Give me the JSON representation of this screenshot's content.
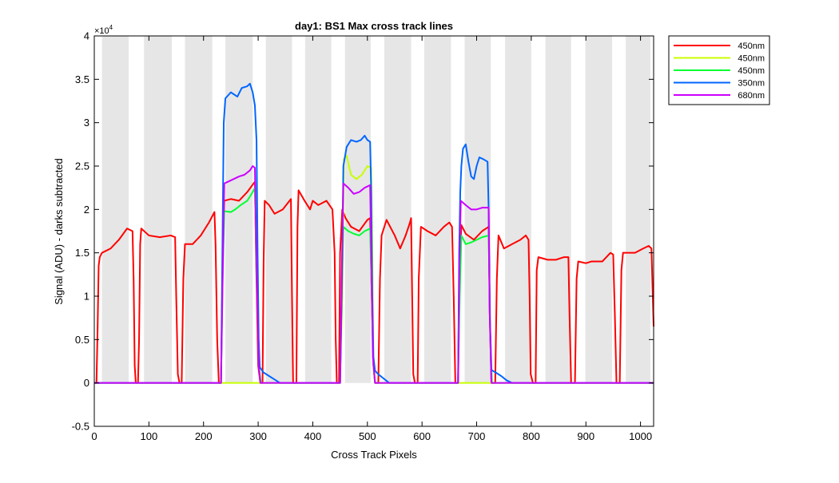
{
  "chart_data": {
    "type": "line",
    "title": "day1: BS1  Max cross track lines",
    "xlabel": "Cross Track Pixels",
    "ylabel": "Signal (ADU) - darks subtracted",
    "y_exponent_label": "×10",
    "y_exponent_power": "4",
    "xlim": [
      0,
      1024
    ],
    "ylim": [
      -0.5,
      4
    ],
    "y_scale_note": "y values in units of 1e4 ADU",
    "x_ticks": [
      0,
      100,
      200,
      300,
      400,
      500,
      600,
      700,
      800,
      900,
      1000
    ],
    "y_ticks": [
      -0.5,
      0,
      0.5,
      1,
      1.5,
      2,
      2.5,
      3,
      3.5,
      4
    ],
    "x_tick_labels": [
      "0",
      "100",
      "200",
      "300",
      "400",
      "500",
      "600",
      "700",
      "800",
      "900",
      "1000"
    ],
    "y_tick_labels": [
      "-0.5",
      "0",
      "0.5",
      "1",
      "1.5",
      "2",
      "2.5",
      "3",
      "3.5",
      "4"
    ],
    "shaded_bands": [
      [
        14,
        63
      ],
      [
        91,
        142
      ],
      [
        166,
        216
      ],
      [
        240,
        290
      ],
      [
        314,
        362
      ],
      [
        386,
        434
      ],
      [
        459,
        506
      ],
      [
        531,
        580
      ],
      [
        604,
        653
      ],
      [
        678,
        726
      ],
      [
        752,
        800
      ],
      [
        826,
        873
      ],
      [
        899,
        948
      ],
      [
        973,
        1018
      ]
    ],
    "band_color": "#e6e6e6",
    "legend_position": "outside-right-top",
    "grid": false,
    "series": [
      {
        "name": "450nm",
        "color": "#ff0000",
        "points": [
          [
            0,
            0
          ],
          [
            4,
            0
          ],
          [
            6,
            0.6
          ],
          [
            8,
            1.35
          ],
          [
            10,
            1.45
          ],
          [
            14,
            1.5
          ],
          [
            30,
            1.55
          ],
          [
            45,
            1.65
          ],
          [
            60,
            1.78
          ],
          [
            70,
            1.75
          ],
          [
            72,
            1.2
          ],
          [
            74,
            0.2
          ],
          [
            76,
            0
          ],
          [
            80,
            0
          ],
          [
            82,
            0.5
          ],
          [
            84,
            1.6
          ],
          [
            86,
            1.78
          ],
          [
            100,
            1.7
          ],
          [
            120,
            1.68
          ],
          [
            140,
            1.7
          ],
          [
            148,
            1.68
          ],
          [
            150,
            1.0
          ],
          [
            153,
            0.1
          ],
          [
            156,
            0
          ],
          [
            160,
            0
          ],
          [
            163,
            1.2
          ],
          [
            166,
            1.6
          ],
          [
            180,
            1.6
          ],
          [
            195,
            1.7
          ],
          [
            210,
            1.85
          ],
          [
            220,
            1.97
          ],
          [
            222,
            1.6
          ],
          [
            225,
            0.5
          ],
          [
            228,
            0
          ],
          [
            232,
            0
          ],
          [
            235,
            1.4
          ],
          [
            238,
            2.1
          ],
          [
            250,
            2.12
          ],
          [
            265,
            2.1
          ],
          [
            280,
            2.2
          ],
          [
            294,
            2.32
          ],
          [
            296,
            1.5
          ],
          [
            300,
            0.2
          ],
          [
            304,
            0
          ],
          [
            308,
            0
          ],
          [
            310,
            1.4
          ],
          [
            312,
            2.1
          ],
          [
            320,
            2.05
          ],
          [
            330,
            1.95
          ],
          [
            345,
            2.0
          ],
          [
            360,
            2.12
          ],
          [
            362,
            1.0
          ],
          [
            364,
            0
          ],
          [
            370,
            0
          ],
          [
            372,
            1.8
          ],
          [
            374,
            2.22
          ],
          [
            385,
            2.1
          ],
          [
            395,
            2.0
          ],
          [
            400,
            2.1
          ],
          [
            410,
            2.05
          ],
          [
            425,
            2.1
          ],
          [
            436,
            2.0
          ],
          [
            440,
            1.5
          ],
          [
            442,
            0.5
          ],
          [
            444,
            0
          ],
          [
            448,
            0
          ],
          [
            450,
            1.5
          ],
          [
            454,
            2.0
          ],
          [
            460,
            1.9
          ],
          [
            470,
            1.8
          ],
          [
            485,
            1.75
          ],
          [
            500,
            1.88
          ],
          [
            505,
            1.9
          ],
          [
            508,
            1.0
          ],
          [
            511,
            0.2
          ],
          [
            514,
            0
          ],
          [
            520,
            0
          ],
          [
            523,
            1.2
          ],
          [
            526,
            1.7
          ],
          [
            535,
            1.88
          ],
          [
            550,
            1.7
          ],
          [
            560,
            1.55
          ],
          [
            570,
            1.7
          ],
          [
            578,
            1.85
          ],
          [
            580,
            1.9
          ],
          [
            582,
            1.0
          ],
          [
            584,
            0.1
          ],
          [
            587,
            0
          ],
          [
            592,
            0
          ],
          [
            594,
            1.2
          ],
          [
            598,
            1.8
          ],
          [
            610,
            1.75
          ],
          [
            625,
            1.7
          ],
          [
            640,
            1.8
          ],
          [
            650,
            1.85
          ],
          [
            655,
            1.8
          ],
          [
            658,
            1.0
          ],
          [
            661,
            0
          ],
          [
            666,
            0
          ],
          [
            669,
            1.3
          ],
          [
            672,
            1.82
          ],
          [
            680,
            1.72
          ],
          [
            695,
            1.65
          ],
          [
            710,
            1.75
          ],
          [
            722,
            1.8
          ],
          [
            724,
            0.8
          ],
          [
            727,
            0
          ],
          [
            734,
            0
          ],
          [
            737,
            1.2
          ],
          [
            740,
            1.7
          ],
          [
            750,
            1.55
          ],
          [
            765,
            1.6
          ],
          [
            780,
            1.65
          ],
          [
            790,
            1.7
          ],
          [
            795,
            1.65
          ],
          [
            797,
            1.0
          ],
          [
            799,
            0.1
          ],
          [
            803,
            0
          ],
          [
            808,
            0
          ],
          [
            810,
            1.3
          ],
          [
            813,
            1.45
          ],
          [
            830,
            1.42
          ],
          [
            845,
            1.42
          ],
          [
            860,
            1.45
          ],
          [
            868,
            1.45
          ],
          [
            870,
            0.8
          ],
          [
            873,
            0
          ],
          [
            880,
            0
          ],
          [
            883,
            1.2
          ],
          [
            886,
            1.4
          ],
          [
            900,
            1.38
          ],
          [
            910,
            1.4
          ],
          [
            930,
            1.4
          ],
          [
            945,
            1.5
          ],
          [
            950,
            1.48
          ],
          [
            953,
            0.8
          ],
          [
            956,
            0
          ],
          [
            962,
            0
          ],
          [
            965,
            1.3
          ],
          [
            968,
            1.5
          ],
          [
            975,
            1.5
          ],
          [
            990,
            1.5
          ],
          [
            1005,
            1.55
          ],
          [
            1015,
            1.58
          ],
          [
            1020,
            1.55
          ],
          [
            1024,
            0.65
          ]
        ]
      },
      {
        "name": "450nm",
        "color": "#c8ff00",
        "points": [
          [
            0,
            0
          ],
          [
            450,
            0
          ],
          [
            454,
            1.0
          ],
          [
            457,
            2.58
          ],
          [
            462,
            2.62
          ],
          [
            470,
            2.4
          ],
          [
            480,
            2.35
          ],
          [
            490,
            2.4
          ],
          [
            500,
            2.5
          ],
          [
            507,
            2.48
          ],
          [
            509,
            1.5
          ],
          [
            511,
            0.3
          ],
          [
            514,
            0
          ],
          [
            1024,
            0
          ]
        ]
      },
      {
        "name": "450nm",
        "color": "#00ff33",
        "points": [
          [
            0,
            0
          ],
          [
            232,
            0
          ],
          [
            235,
            1.2
          ],
          [
            238,
            1.98
          ],
          [
            250,
            1.97
          ],
          [
            258,
            2.0
          ],
          [
            268,
            2.05
          ],
          [
            280,
            2.1
          ],
          [
            290,
            2.2
          ],
          [
            294,
            2.25
          ],
          [
            297,
            1.3
          ],
          [
            301,
            0.2
          ],
          [
            305,
            0
          ],
          [
            450,
            0
          ],
          [
            453,
            1.0
          ],
          [
            456,
            1.8
          ],
          [
            465,
            1.75
          ],
          [
            475,
            1.72
          ],
          [
            485,
            1.7
          ],
          [
            495,
            1.75
          ],
          [
            505,
            1.78
          ],
          [
            508,
            1.0
          ],
          [
            511,
            0.2
          ],
          [
            514,
            0
          ],
          [
            666,
            0
          ],
          [
            669,
            1.0
          ],
          [
            672,
            1.7
          ],
          [
            680,
            1.6
          ],
          [
            690,
            1.62
          ],
          [
            700,
            1.65
          ],
          [
            710,
            1.68
          ],
          [
            722,
            1.7
          ],
          [
            725,
            0.6
          ],
          [
            728,
            0
          ],
          [
            1024,
            0
          ]
        ]
      },
      {
        "name": "350nm",
        "color": "#0066ff",
        "points": [
          [
            0,
            0
          ],
          [
            232,
            0
          ],
          [
            235,
            1.8
          ],
          [
            237,
            3.0
          ],
          [
            240,
            3.28
          ],
          [
            250,
            3.35
          ],
          [
            262,
            3.3
          ],
          [
            270,
            3.4
          ],
          [
            280,
            3.42
          ],
          [
            285,
            3.45
          ],
          [
            290,
            3.35
          ],
          [
            294,
            3.2
          ],
          [
            297,
            2.8
          ],
          [
            299,
            1.5
          ],
          [
            301,
            0.5
          ],
          [
            303,
            0.18
          ],
          [
            310,
            0.12
          ],
          [
            320,
            0.08
          ],
          [
            330,
            0.04
          ],
          [
            340,
            0
          ],
          [
            450,
            0
          ],
          [
            453,
            1.0
          ],
          [
            456,
            2.5
          ],
          [
            462,
            2.72
          ],
          [
            470,
            2.8
          ],
          [
            480,
            2.78
          ],
          [
            488,
            2.8
          ],
          [
            495,
            2.85
          ],
          [
            500,
            2.8
          ],
          [
            505,
            2.78
          ],
          [
            507,
            2.2
          ],
          [
            509,
            1.0
          ],
          [
            511,
            0.3
          ],
          [
            514,
            0.14
          ],
          [
            520,
            0.1
          ],
          [
            530,
            0.05
          ],
          [
            540,
            0
          ],
          [
            666,
            0
          ],
          [
            668,
            1.5
          ],
          [
            670,
            2.2
          ],
          [
            672,
            2.5
          ],
          [
            675,
            2.7
          ],
          [
            680,
            2.75
          ],
          [
            685,
            2.55
          ],
          [
            690,
            2.38
          ],
          [
            695,
            2.35
          ],
          [
            700,
            2.5
          ],
          [
            705,
            2.6
          ],
          [
            712,
            2.58
          ],
          [
            720,
            2.55
          ],
          [
            722,
            2.0
          ],
          [
            724,
            0.8
          ],
          [
            727,
            0.15
          ],
          [
            735,
            0.12
          ],
          [
            745,
            0.08
          ],
          [
            755,
            0.03
          ],
          [
            765,
            0
          ],
          [
            1024,
            0
          ]
        ]
      },
      {
        "name": "680nm",
        "color": "#cc00ff",
        "points": [
          [
            0,
            0
          ],
          [
            232,
            0
          ],
          [
            235,
            1.2
          ],
          [
            238,
            2.3
          ],
          [
            245,
            2.32
          ],
          [
            255,
            2.35
          ],
          [
            265,
            2.38
          ],
          [
            275,
            2.4
          ],
          [
            285,
            2.45
          ],
          [
            290,
            2.5
          ],
          [
            294,
            2.48
          ],
          [
            297,
            1.4
          ],
          [
            301,
            0.2
          ],
          [
            304,
            0
          ],
          [
            450,
            0
          ],
          [
            453,
            1.2
          ],
          [
            456,
            2.3
          ],
          [
            465,
            2.25
          ],
          [
            475,
            2.18
          ],
          [
            485,
            2.2
          ],
          [
            495,
            2.25
          ],
          [
            505,
            2.28
          ],
          [
            507,
            1.5
          ],
          [
            510,
            0.3
          ],
          [
            514,
            0
          ],
          [
            666,
            0
          ],
          [
            668,
            1.2
          ],
          [
            671,
            2.1
          ],
          [
            680,
            2.05
          ],
          [
            690,
            2.0
          ],
          [
            700,
            2.0
          ],
          [
            710,
            2.02
          ],
          [
            722,
            2.02
          ],
          [
            724,
            0.8
          ],
          [
            727,
            0
          ],
          [
            1024,
            0
          ]
        ]
      }
    ]
  }
}
